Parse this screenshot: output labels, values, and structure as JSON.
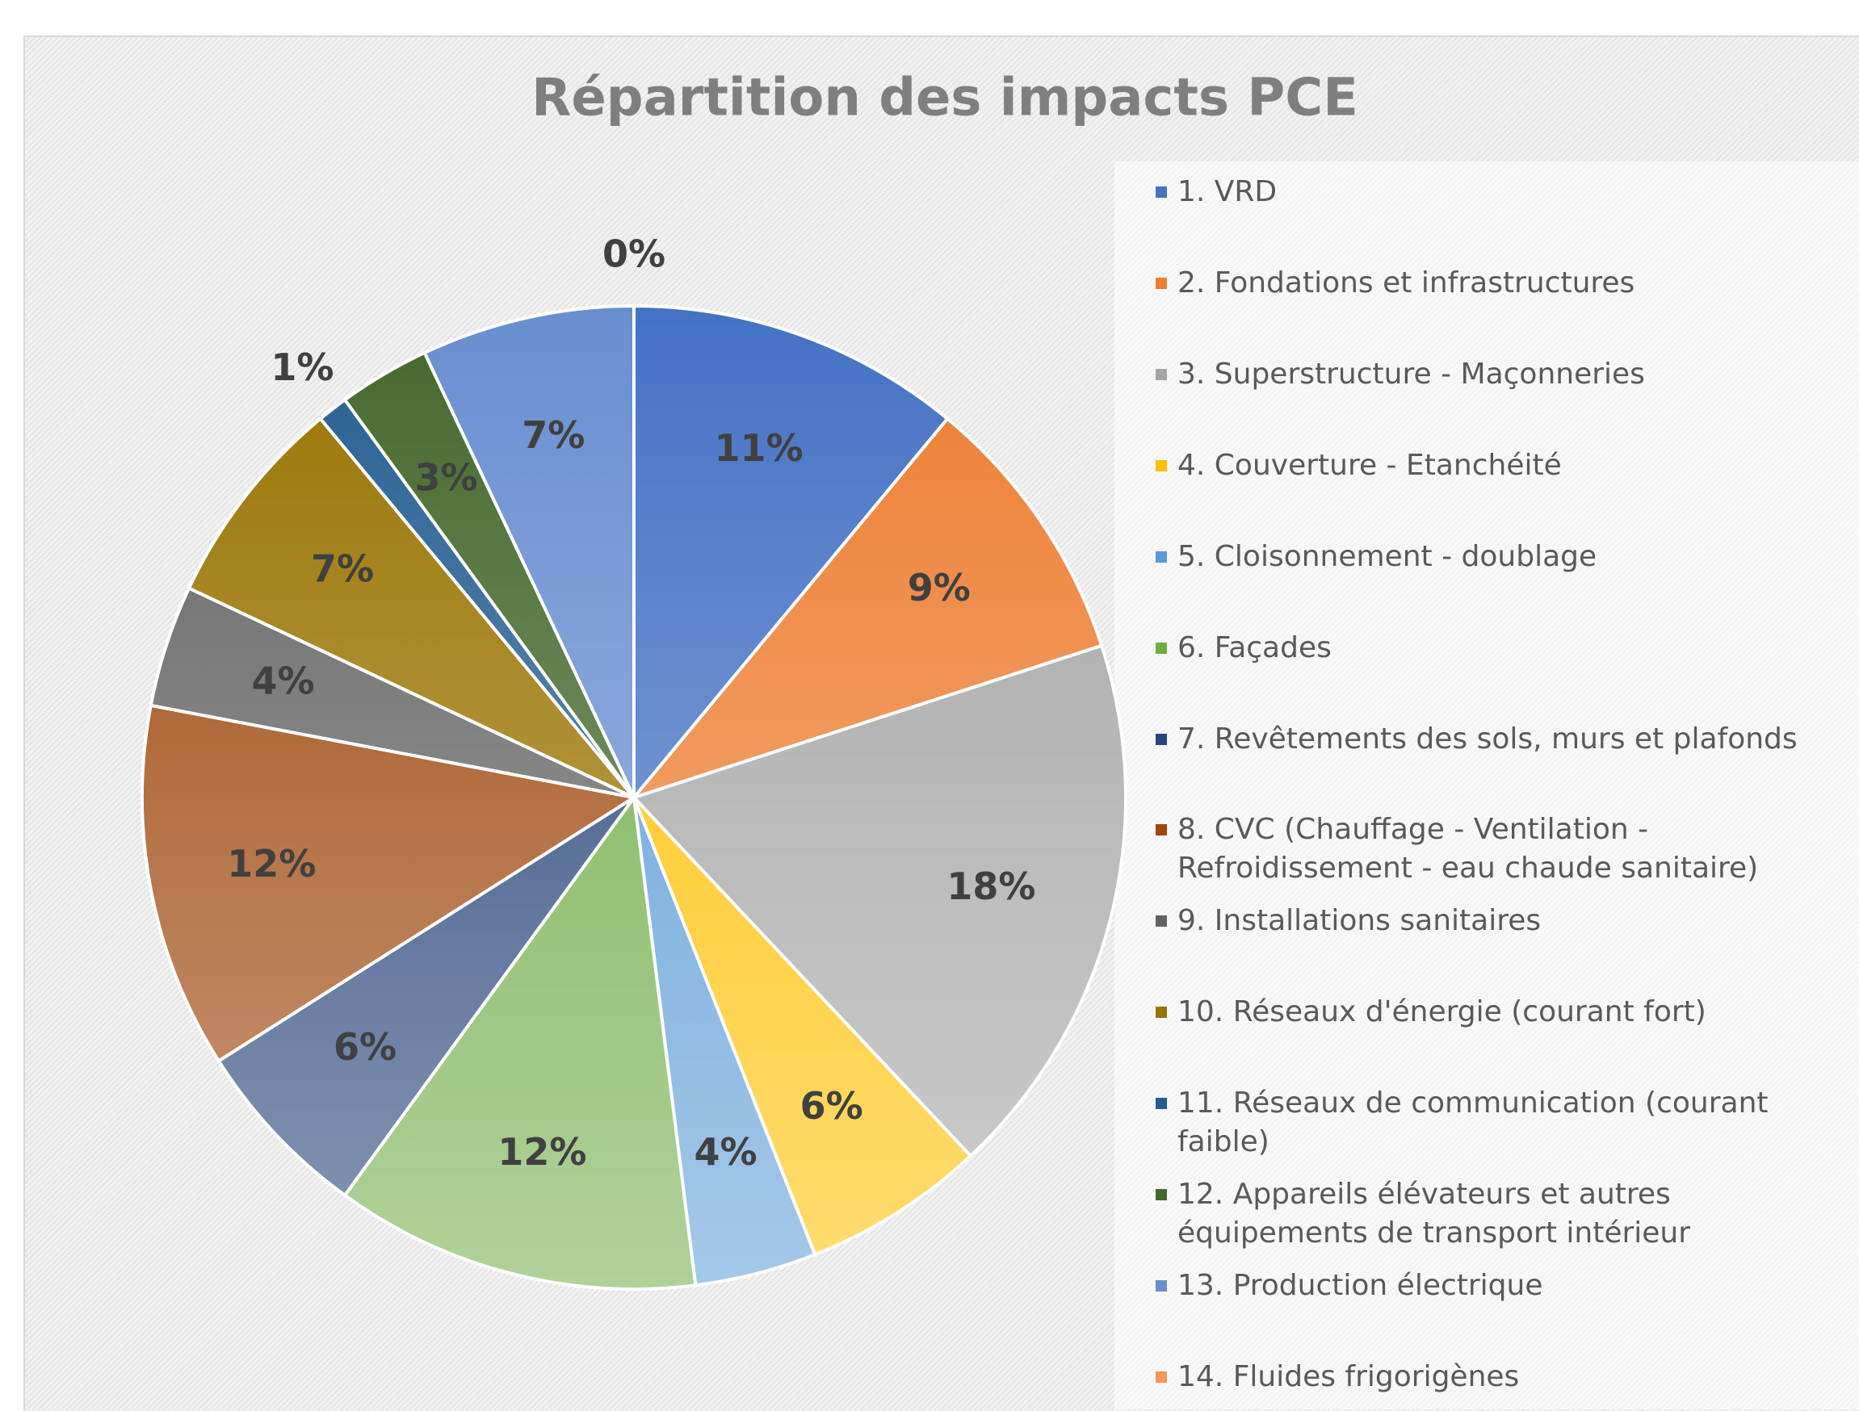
{
  "chart_data": {
    "type": "pie",
    "title": "Répartition des impacts PCE",
    "categories": [
      "1. VRD",
      "2. Fondations et infrastructures",
      "3. Superstructure - Maçonneries",
      "4. Couverture - Etanchéité",
      "5. Cloisonnement - doublage",
      "6. Façades",
      "7. Revêtements des sols, murs et plafonds",
      "8. CVC (Chauffage - Ventilation - Refroidissement - eau chaude sanitaire)",
      "9. Installations sanitaires",
      "10. Réseaux d'énergie (courant fort)",
      "11. Réseaux de communication (courant faible)",
      "12. Appareils élévateurs et autres équipements de transport intérieur",
      "13. Production électrique",
      "14. Fluides frigorigènes"
    ],
    "values": [
      11,
      9,
      18,
      6,
      4,
      12,
      6,
      12,
      4,
      7,
      1,
      3,
      7,
      0
    ],
    "value_labels": [
      "11%",
      "9%",
      "18%",
      "6%",
      "4%",
      "12%",
      "6%",
      "12%",
      "4%",
      "7%",
      "1%",
      "3%",
      "7%",
      "0%"
    ],
    "colors": [
      "#4472c4",
      "#ed7d31",
      "#a5a5a5",
      "#ffc000",
      "#5b9bd5",
      "#70ad47",
      "#264478",
      "#9e480e",
      "#636363",
      "#997300",
      "#255e91",
      "#43682b",
      "#698ed0",
      "#f1975a"
    ],
    "legend": "right"
  }
}
